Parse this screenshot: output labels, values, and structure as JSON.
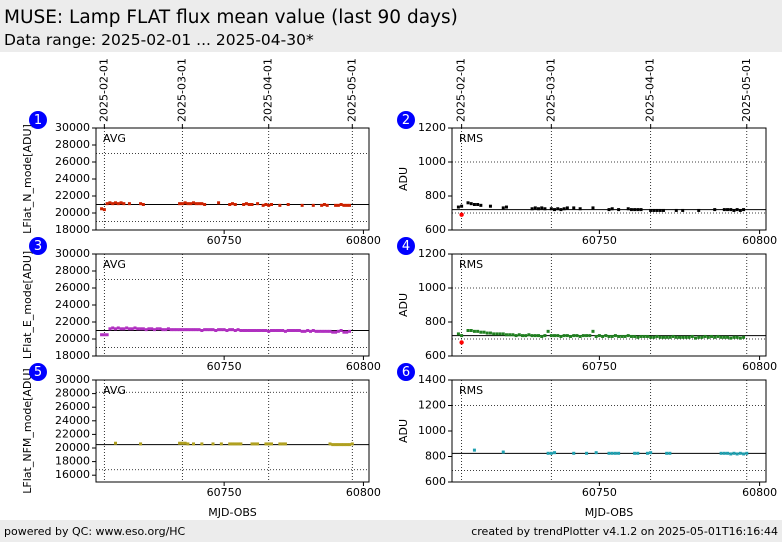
{
  "header": {
    "title": "MUSE: Lamp FLAT flux mean value (last 90 days)",
    "subtitle": "Data range: 2025-02-01 ... 2025-04-30*"
  },
  "footer": {
    "left": "powered by QC: www.eso.org/HC",
    "right": "created by trendPlotter v4.1.2 on 2025-05-01T16:16:44"
  },
  "colors": {
    "badge": "#0000ff",
    "outlier": "#ff0000",
    "n_mode": "#cc2200",
    "e_mode": "#b030c0",
    "nfm_mode": "#b0a020",
    "rms_n": "#000000",
    "rms_e": "#208020",
    "rms_nfm": "#20a0b0"
  },
  "chart_data": [
    {
      "id": 1,
      "type": "scatter",
      "column": "left",
      "row": 0,
      "badge": "1",
      "tag": "AVG",
      "ylabel": "LFlat_N_mode[ADU]",
      "xlabel": "",
      "xlim": [
        60704,
        60802
      ],
      "ylim": [
        18000,
        30000
      ],
      "yticks": [
        18000,
        20000,
        22000,
        24000,
        26000,
        28000,
        30000
      ],
      "xticks": [
        60750,
        60800
      ],
      "show_xtick_labels": true,
      "date_ticks": [
        {
          "label": "2025-02-01",
          "x": 60707
        },
        {
          "label": "2025-03-01",
          "x": 60735
        },
        {
          "label": "2025-04-01",
          "x": 60766
        },
        {
          "label": "2025-05-01",
          "x": 60796
        }
      ],
      "show_date_labels": true,
      "hlines_dotted": [
        19000,
        27000
      ],
      "hline_solid": 21000,
      "color_key": "n_mode",
      "series": [
        {
          "x": [
            60706,
            60707,
            60708,
            60709,
            60710,
            60711,
            60712,
            60713,
            60714,
            60716,
            60720,
            60721,
            60734,
            60735,
            60736,
            60737,
            60738,
            60739,
            60740,
            60741,
            60742,
            60743,
            60748,
            60752,
            60753,
            60754,
            60757,
            60758,
            60759,
            60760,
            60762,
            60764,
            60765,
            60766,
            60767,
            60770,
            60773,
            60778,
            60782,
            60785,
            60786,
            60787,
            60790,
            60791,
            60792,
            60793,
            60794,
            60795
          ],
          "y": [
            20500,
            20400,
            21100,
            21200,
            21100,
            21200,
            21100,
            21200,
            21100,
            21100,
            21100,
            21000,
            21100,
            21100,
            21200,
            21100,
            21100,
            21200,
            21100,
            21100,
            21100,
            21000,
            21200,
            21000,
            21100,
            21000,
            21000,
            21100,
            21000,
            21000,
            21100,
            20900,
            21000,
            20900,
            21000,
            20900,
            21000,
            20900,
            20900,
            20900,
            21000,
            20900,
            20900,
            20900,
            21000,
            20900,
            20900,
            20900
          ]
        }
      ]
    },
    {
      "id": 2,
      "type": "scatter",
      "column": "right",
      "row": 0,
      "badge": "2",
      "tag": "RMS",
      "ylabel": "ADU",
      "xlabel": "",
      "xlim": [
        60704,
        60802
      ],
      "ylim": [
        600,
        1200
      ],
      "yticks": [
        600,
        800,
        1000,
        1200
      ],
      "xticks": [
        60750,
        60800
      ],
      "show_xtick_labels": true,
      "date_ticks": [
        {
          "label": "2025-02-01",
          "x": 60707
        },
        {
          "label": "2025-03-01",
          "x": 60735
        },
        {
          "label": "2025-04-01",
          "x": 60766
        },
        {
          "label": "2025-05-01",
          "x": 60796
        }
      ],
      "show_date_labels": true,
      "hlines_dotted": [
        700,
        1000
      ],
      "hline_solid": 720,
      "color_key": "rms_n",
      "outliers": [
        {
          "x": 60707,
          "y": 690
        }
      ],
      "series": [
        {
          "x": [
            60706,
            60707,
            60709,
            60710,
            60711,
            60712,
            60713,
            60716,
            60720,
            60721,
            60729,
            60730,
            60731,
            60732,
            60733,
            60735,
            60736,
            60737,
            60738,
            60739,
            60740,
            60742,
            60744,
            60748,
            60753,
            60754,
            60756,
            60759,
            60760,
            60761,
            60762,
            60763,
            60766,
            60767,
            60768,
            60769,
            60770,
            60774,
            60776,
            60781,
            60786,
            60789,
            60790,
            60791,
            60792,
            60793,
            60794,
            60795
          ],
          "y": [
            735,
            740,
            760,
            755,
            750,
            750,
            745,
            740,
            730,
            735,
            725,
            730,
            725,
            730,
            725,
            725,
            720,
            725,
            720,
            725,
            730,
            730,
            725,
            730,
            720,
            725,
            720,
            725,
            720,
            720,
            720,
            720,
            715,
            715,
            715,
            715,
            715,
            715,
            715,
            715,
            720,
            720,
            720,
            720,
            715,
            720,
            715,
            720
          ]
        }
      ]
    },
    {
      "id": 3,
      "type": "scatter",
      "column": "left",
      "row": 1,
      "badge": "3",
      "tag": "AVG",
      "ylabel": "LFlat_E_mode[ADU]",
      "xlabel": "",
      "xlim": [
        60704,
        60802
      ],
      "ylim": [
        18000,
        30000
      ],
      "yticks": [
        18000,
        20000,
        22000,
        24000,
        26000,
        28000,
        30000
      ],
      "xticks": [
        60750,
        60800
      ],
      "show_xtick_labels": true,
      "date_ticks": [
        {
          "label": "2025-02-01",
          "x": 60707
        },
        {
          "label": "2025-03-01",
          "x": 60735
        },
        {
          "label": "2025-04-01",
          "x": 60766
        },
        {
          "label": "2025-05-01",
          "x": 60796
        }
      ],
      "show_date_labels": false,
      "hlines_dotted": [
        19000,
        27000
      ],
      "hline_solid": 21000,
      "color_key": "e_mode",
      "series": [
        {
          "x": [
            60706,
            60707,
            60708,
            60709,
            60710,
            60711,
            60712,
            60713,
            60714,
            60715,
            60716,
            60717,
            60718,
            60719,
            60720,
            60721,
            60722,
            60723,
            60724,
            60725,
            60726,
            60727,
            60728,
            60729,
            60730,
            60731,
            60732,
            60733,
            60734,
            60735,
            60736,
            60737,
            60738,
            60739,
            60740,
            60741,
            60742,
            60743,
            60744,
            60745,
            60746,
            60747,
            60748,
            60749,
            60750,
            60751,
            60752,
            60753,
            60754,
            60755,
            60756,
            60757,
            60758,
            60759,
            60760,
            60761,
            60762,
            60763,
            60764,
            60765,
            60766,
            60767,
            60768,
            60769,
            60770,
            60771,
            60772,
            60773,
            60774,
            60775,
            60776,
            60777,
            60778,
            60779,
            60780,
            60781,
            60782,
            60783,
            60784,
            60785,
            60786,
            60787,
            60788,
            60789,
            60790,
            60791,
            60792,
            60793,
            60794,
            60795
          ],
          "y": [
            20500,
            20500,
            20500,
            21200,
            21300,
            21200,
            21300,
            21200,
            21200,
            21300,
            21200,
            21200,
            21300,
            21200,
            21200,
            21200,
            21100,
            21200,
            21200,
            21100,
            21200,
            21200,
            21100,
            21100,
            21200,
            21100,
            21100,
            21100,
            21100,
            21100,
            21100,
            21100,
            21100,
            21100,
            21100,
            21100,
            21000,
            21100,
            21100,
            21100,
            21100,
            21000,
            21100,
            21100,
            21100,
            21000,
            21100,
            21100,
            21000,
            21100,
            21000,
            21000,
            21000,
            21000,
            21000,
            21000,
            21000,
            21000,
            21000,
            21000,
            20900,
            21000,
            21000,
            21000,
            21000,
            21000,
            20900,
            21000,
            21000,
            21000,
            21000,
            21000,
            20900,
            20900,
            21000,
            20900,
            21000,
            20900,
            20900,
            20900,
            20900,
            20900,
            20900,
            20800,
            20800,
            20900,
            21000,
            20800,
            20800,
            20900
          ]
        }
      ]
    },
    {
      "id": 4,
      "type": "scatter",
      "column": "right",
      "row": 1,
      "badge": "4",
      "tag": "RMS",
      "ylabel": "ADU",
      "xlabel": "",
      "xlim": [
        60704,
        60802
      ],
      "ylim": [
        600,
        1200
      ],
      "yticks": [
        600,
        800,
        1000,
        1200
      ],
      "xticks": [
        60750,
        60800
      ],
      "show_xtick_labels": true,
      "date_ticks": [
        {
          "label": "2025-02-01",
          "x": 60707
        },
        {
          "label": "2025-03-01",
          "x": 60735
        },
        {
          "label": "2025-04-01",
          "x": 60766
        },
        {
          "label": "2025-05-01",
          "x": 60796
        }
      ],
      "show_date_labels": false,
      "hlines_dotted": [
        700,
        1000
      ],
      "hline_solid": 720,
      "color_key": "rms_e",
      "outliers": [
        {
          "x": 60707,
          "y": 680
        }
      ],
      "series": [
        {
          "x": [
            60706,
            60707,
            60709,
            60710,
            60711,
            60712,
            60713,
            60714,
            60715,
            60716,
            60717,
            60718,
            60719,
            60720,
            60721,
            60722,
            60723,
            60724,
            60725,
            60726,
            60727,
            60728,
            60729,
            60730,
            60731,
            60732,
            60733,
            60734,
            60735,
            60736,
            60737,
            60738,
            60739,
            60740,
            60741,
            60742,
            60743,
            60744,
            60745,
            60746,
            60747,
            60748,
            60749,
            60750,
            60751,
            60752,
            60753,
            60754,
            60755,
            60756,
            60757,
            60758,
            60759,
            60760,
            60761,
            60762,
            60763,
            60764,
            60765,
            60766,
            60767,
            60768,
            60769,
            60770,
            60771,
            60772,
            60773,
            60774,
            60775,
            60776,
            60777,
            60778,
            60779,
            60780,
            60781,
            60782,
            60783,
            60784,
            60785,
            60786,
            60787,
            60788,
            60789,
            60790,
            60791,
            60792,
            60793,
            60794,
            60795
          ],
          "y": [
            730,
            720,
            750,
            750,
            745,
            745,
            740,
            740,
            735,
            735,
            730,
            730,
            730,
            730,
            725,
            725,
            725,
            720,
            725,
            720,
            720,
            725,
            720,
            720,
            720,
            715,
            720,
            745,
            720,
            720,
            720,
            715,
            720,
            720,
            715,
            720,
            720,
            715,
            720,
            720,
            720,
            745,
            715,
            720,
            715,
            720,
            715,
            715,
            720,
            715,
            715,
            715,
            720,
            715,
            715,
            710,
            715,
            715,
            715,
            710,
            710,
            715,
            710,
            710,
            710,
            710,
            715,
            710,
            710,
            710,
            710,
            710,
            715,
            705,
            710,
            710,
            715,
            710,
            715,
            710,
            715,
            710,
            710,
            710,
            705,
            710,
            710,
            705,
            710
          ]
        }
      ]
    },
    {
      "id": 5,
      "type": "scatter",
      "column": "left",
      "row": 2,
      "badge": "5",
      "tag": "AVG",
      "ylabel": "LFlat_NFM_mode[ADU]",
      "xlabel": "MJD-OBS",
      "xlim": [
        60704,
        60802
      ],
      "ylim": [
        15000,
        30000
      ],
      "yticks": [
        16000,
        18000,
        20000,
        22000,
        24000,
        26000,
        28000,
        30000
      ],
      "xticks": [
        60750,
        60800
      ],
      "show_xtick_labels": true,
      "date_ticks": [
        {
          "label": "2025-02-01",
          "x": 60707
        },
        {
          "label": "2025-03-01",
          "x": 60735
        },
        {
          "label": "2025-04-01",
          "x": 60766
        },
        {
          "label": "2025-05-01",
          "x": 60796
        }
      ],
      "show_date_labels": false,
      "hlines_dotted": [
        16800,
        28200
      ],
      "hline_solid": 20500,
      "color_key": "nfm_mode",
      "series": [
        {
          "x": [
            60711,
            60720,
            60734,
            60735,
            60736,
            60737,
            60739,
            60742,
            60746,
            60749,
            60752,
            60753,
            60754,
            60755,
            60756,
            60760,
            60761,
            60762,
            60765,
            60766,
            60767,
            60770,
            60771,
            60772,
            60788,
            60789,
            60790,
            60791,
            60792,
            60793,
            60794,
            60795,
            60796
          ],
          "y": [
            20700,
            20600,
            20700,
            20700,
            20700,
            20600,
            20600,
            20600,
            20600,
            20600,
            20600,
            20600,
            20600,
            20600,
            20600,
            20600,
            20600,
            20600,
            20600,
            20600,
            20600,
            20600,
            20600,
            20600,
            20600,
            20500,
            20500,
            20500,
            20500,
            20500,
            20500,
            20500,
            20600
          ]
        }
      ]
    },
    {
      "id": 6,
      "type": "scatter",
      "column": "right",
      "row": 2,
      "badge": "6",
      "tag": "RMS",
      "ylabel": "ADU",
      "xlabel": "MJD-OBS",
      "xlim": [
        60704,
        60802
      ],
      "ylim": [
        600,
        1400
      ],
      "yticks": [
        600,
        800,
        1000,
        1200,
        1400
      ],
      "xticks": [
        60750,
        60800
      ],
      "show_xtick_labels": true,
      "date_ticks": [
        {
          "label": "2025-02-01",
          "x": 60707
        },
        {
          "label": "2025-03-01",
          "x": 60735
        },
        {
          "label": "2025-04-01",
          "x": 60766
        },
        {
          "label": "2025-05-01",
          "x": 60796
        }
      ],
      "show_date_labels": false,
      "hlines_dotted": [
        690,
        1200
      ],
      "hline_solid": 825,
      "color_key": "rms_nfm",
      "series": [
        {
          "x": [
            60711,
            60720,
            60734,
            60735,
            60736,
            60742,
            60746,
            60749,
            60753,
            60754,
            60755,
            60756,
            60761,
            60762,
            60765,
            60766,
            60771,
            60772,
            60788,
            60789,
            60790,
            60791,
            60792,
            60793,
            60794,
            60795,
            60796
          ],
          "y": [
            850,
            835,
            825,
            825,
            830,
            825,
            825,
            830,
            825,
            825,
            825,
            825,
            825,
            825,
            825,
            830,
            825,
            825,
            825,
            825,
            825,
            820,
            825,
            820,
            825,
            820,
            825
          ]
        }
      ]
    }
  ]
}
